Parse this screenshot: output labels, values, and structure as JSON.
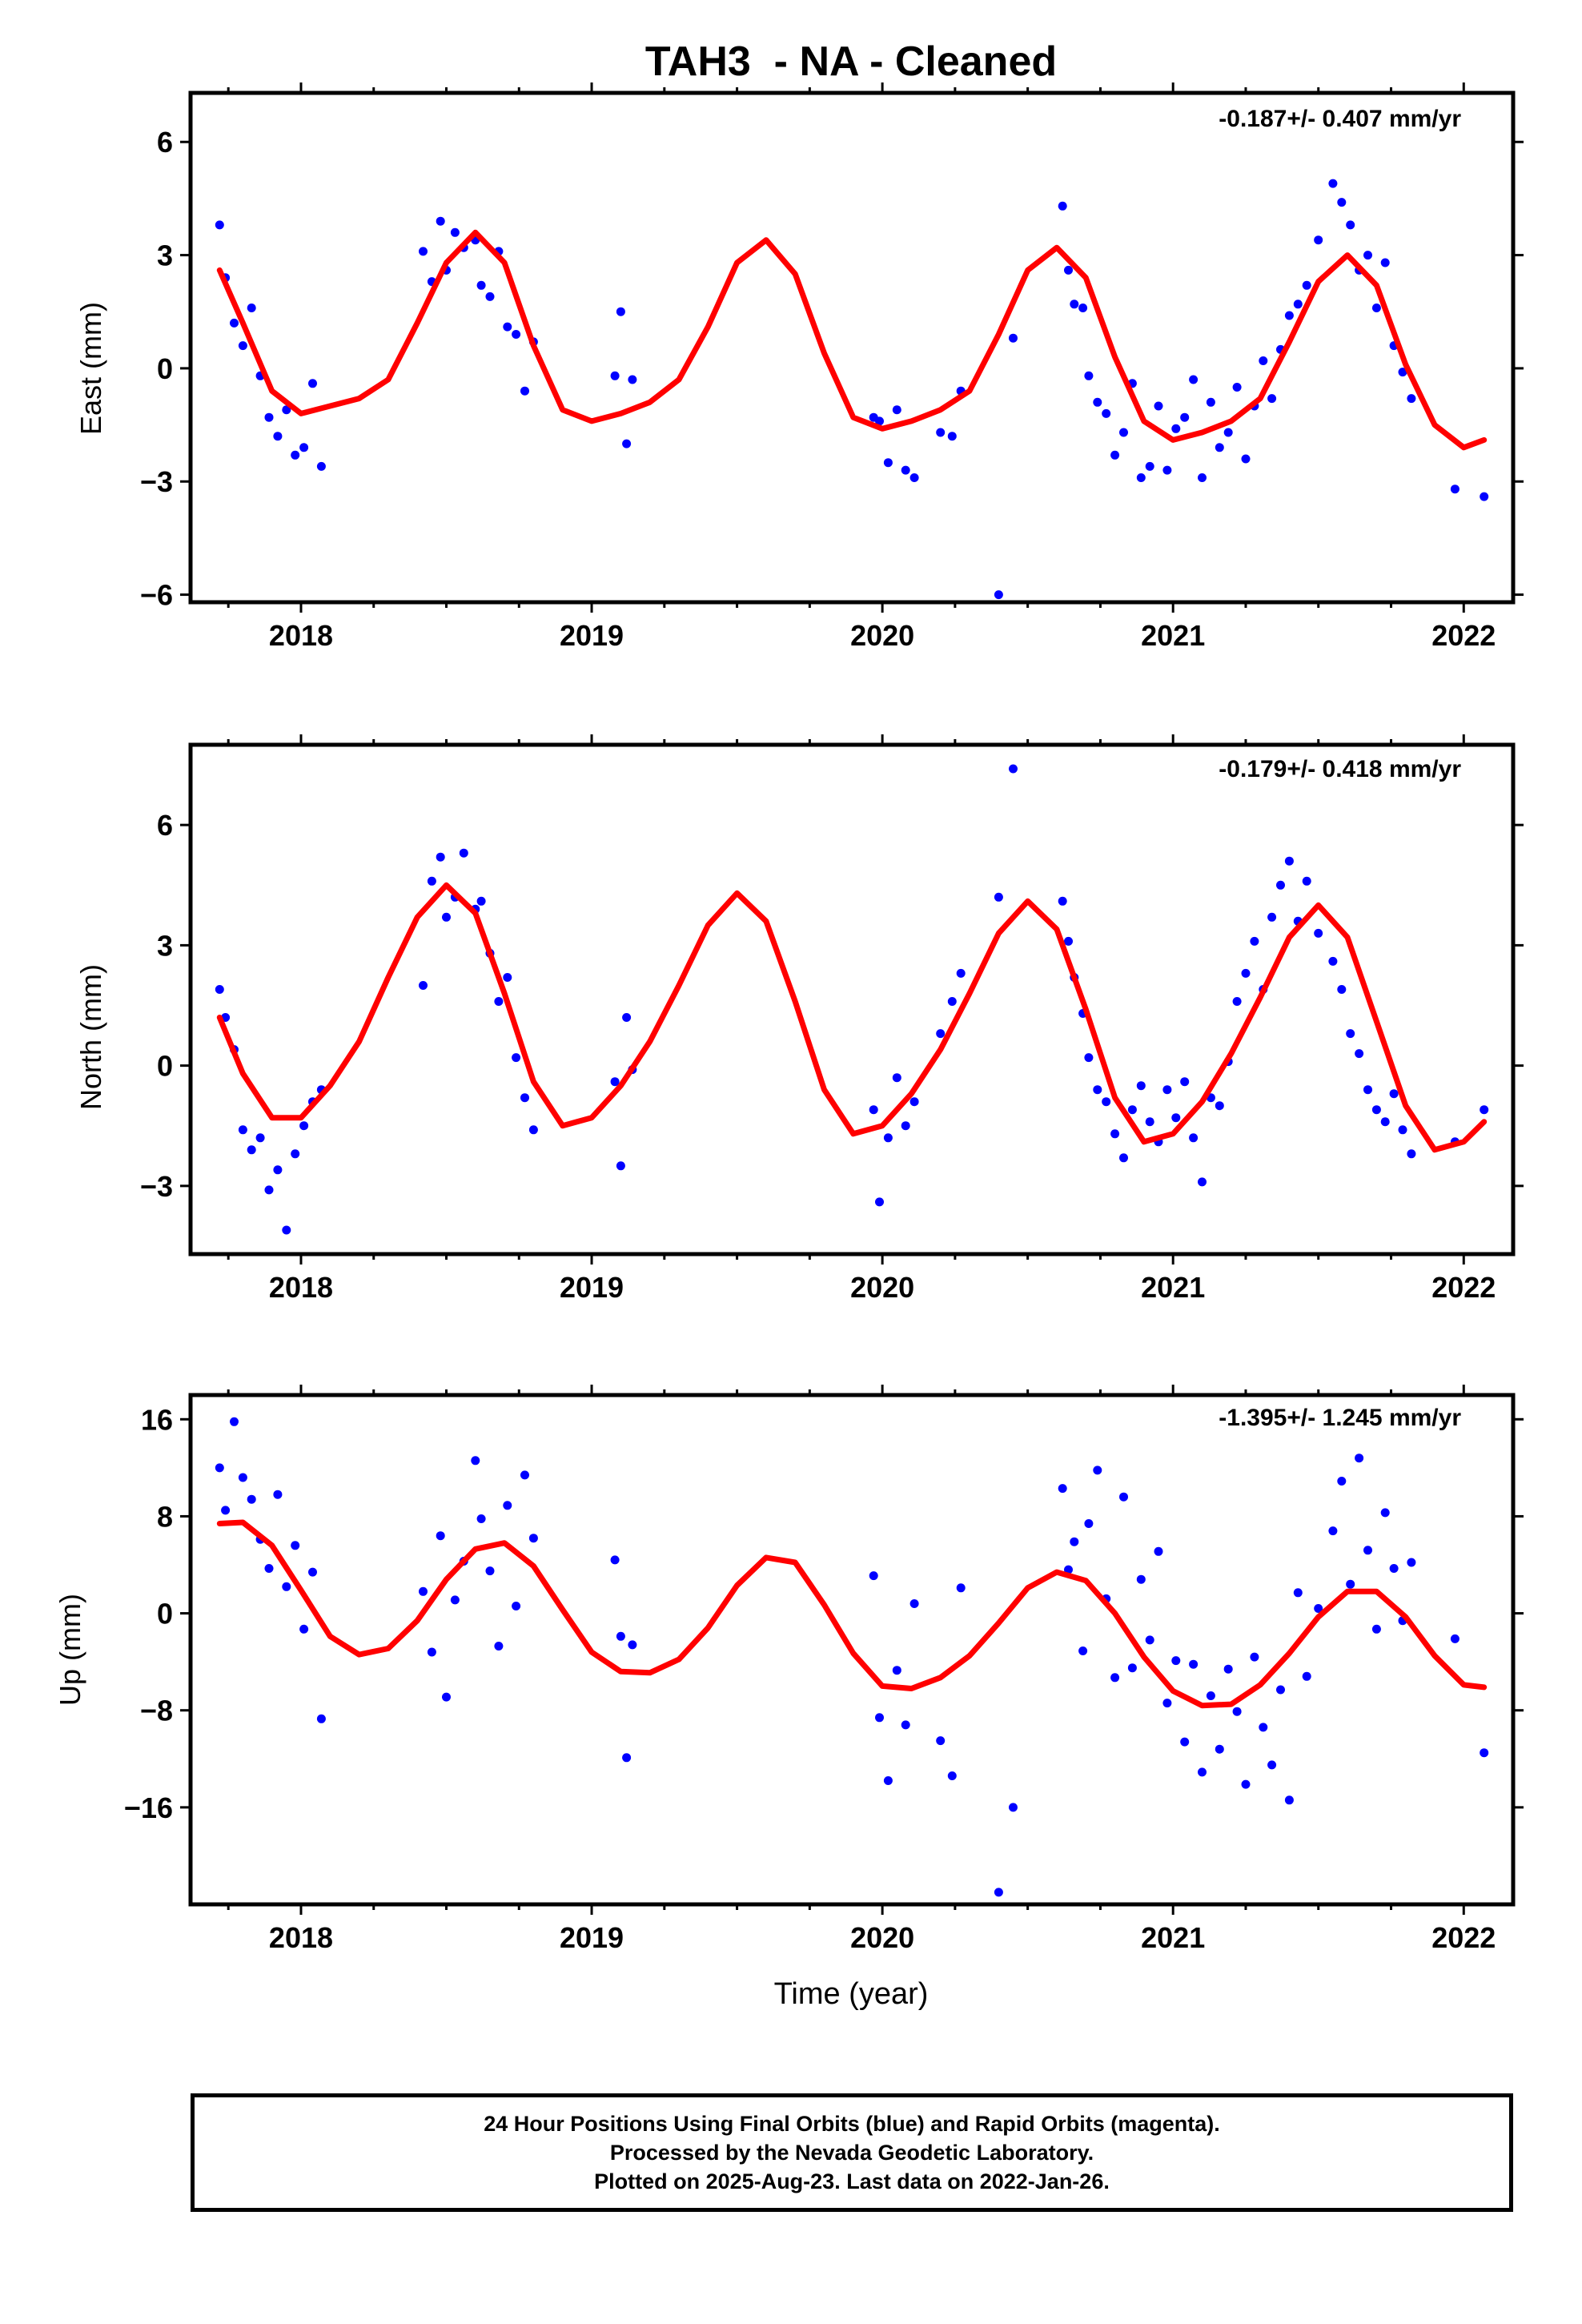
{
  "title": "TAH3  - NA - Cleaned",
  "xlabel": "Time (year)",
  "footer": {
    "line1": "24 Hour Positions Using Final Orbits (blue) and Rapid Orbits (magenta).",
    "line2": "Processed by the Nevada Geodetic Laboratory.",
    "line3": "Plotted on 2025-Aug-23. Last data on 2022-Jan-26."
  },
  "colors": {
    "data_points": "#0000ff",
    "model_curve": "#ff0000",
    "frame": "#000000"
  },
  "chart_data": [
    {
      "type": "scatter",
      "component": "east",
      "ylabel": "East (mm)",
      "rate_label": "-0.187+/- 0.407 mm/yr",
      "xlim": [
        2017.62,
        2022.17
      ],
      "ylim": [
        -6.2,
        7.3
      ],
      "xticks": [
        2018,
        2019,
        2020,
        2021,
        2022
      ],
      "yticks": [
        -6,
        -3,
        0,
        3,
        6
      ],
      "ytick_labels": [
        "−6",
        "−3",
        "0",
        "3",
        "6"
      ],
      "series": [
        {
          "style": "points",
          "x": [
            2017.72,
            2017.74,
            2017.77,
            2017.8,
            2017.83,
            2017.86,
            2017.89,
            2017.92,
            2017.95,
            2017.98,
            2018.01,
            2018.04,
            2018.07,
            2018.42,
            2018.45,
            2018.48,
            2018.5,
            2018.53,
            2018.56,
            2018.6,
            2018.62,
            2018.65,
            2018.68,
            2018.71,
            2018.74,
            2018.77,
            2018.8,
            2019.08,
            2019.1,
            2019.12,
            2019.14,
            2019.97,
            2019.99,
            2020.02,
            2020.05,
            2020.08,
            2020.11,
            2020.2,
            2020.24,
            2020.27,
            2020.4,
            2020.45,
            2020.62,
            2020.64,
            2020.66,
            2020.69,
            2020.71,
            2020.74,
            2020.77,
            2020.8,
            2020.83,
            2020.86,
            2020.89,
            2020.92,
            2020.95,
            2020.98,
            2021.01,
            2021.04,
            2021.07,
            2021.1,
            2021.13,
            2021.16,
            2021.19,
            2021.22,
            2021.25,
            2021.28,
            2021.31,
            2021.34,
            2021.37,
            2021.4,
            2021.43,
            2021.46,
            2021.5,
            2021.55,
            2021.58,
            2021.61,
            2021.64,
            2021.67,
            2021.7,
            2021.73,
            2021.76,
            2021.79,
            2021.82,
            2021.97,
            2022.07
          ],
          "y": [
            3.8,
            2.4,
            1.2,
            0.6,
            1.6,
            -0.2,
            -1.3,
            -1.8,
            -1.1,
            -2.3,
            -2.1,
            -0.4,
            -2.6,
            3.1,
            2.3,
            3.9,
            2.6,
            3.6,
            3.2,
            3.4,
            2.2,
            1.9,
            3.1,
            1.1,
            0.9,
            -0.6,
            0.7,
            -0.2,
            1.5,
            -2.0,
            -0.3,
            -1.3,
            -1.4,
            -2.5,
            -1.1,
            -2.7,
            -2.9,
            -1.7,
            -1.8,
            -0.6,
            -6.0,
            0.8,
            4.3,
            2.6,
            1.7,
            1.6,
            -0.2,
            -0.9,
            -1.2,
            -2.3,
            -1.7,
            -0.4,
            -2.9,
            -2.6,
            -1.0,
            -2.7,
            -1.6,
            -1.3,
            -0.3,
            -2.9,
            -0.9,
            -2.1,
            -1.7,
            -0.5,
            -2.4,
            -1.0,
            0.2,
            -0.8,
            0.5,
            1.4,
            1.7,
            2.2,
            3.4,
            4.9,
            4.4,
            3.8,
            2.6,
            3.0,
            1.6,
            2.8,
            0.6,
            -0.1,
            -0.8,
            -3.2,
            -3.4
          ]
        },
        {
          "style": "curve",
          "x": [
            2017.72,
            2017.8,
            2017.9,
            2018.0,
            2018.1,
            2018.2,
            2018.3,
            2018.4,
            2018.5,
            2018.6,
            2018.7,
            2018.8,
            2018.9,
            2019.0,
            2019.1,
            2019.2,
            2019.3,
            2019.4,
            2019.5,
            2019.6,
            2019.7,
            2019.8,
            2019.9,
            2020.0,
            2020.1,
            2020.2,
            2020.3,
            2020.4,
            2020.5,
            2020.6,
            2020.7,
            2020.8,
            2020.9,
            2021.0,
            2021.1,
            2021.2,
            2021.3,
            2021.4,
            2021.5,
            2021.6,
            2021.7,
            2021.8,
            2021.9,
            2022.0,
            2022.07
          ],
          "y": [
            2.6,
            1.2,
            -0.6,
            -1.2,
            -1.0,
            -0.8,
            -0.3,
            1.2,
            2.8,
            3.6,
            2.8,
            0.6,
            -1.1,
            -1.4,
            -1.2,
            -0.9,
            -0.3,
            1.1,
            2.8,
            3.4,
            2.5,
            0.4,
            -1.3,
            -1.6,
            -1.4,
            -1.1,
            -0.6,
            0.9,
            2.6,
            3.2,
            2.4,
            0.3,
            -1.4,
            -1.9,
            -1.7,
            -1.4,
            -0.8,
            0.7,
            2.3,
            3.0,
            2.2,
            0.1,
            -1.5,
            -2.1,
            -1.9
          ]
        }
      ]
    },
    {
      "type": "scatter",
      "component": "north",
      "ylabel": "North (mm)",
      "rate_label": "-0.179+/- 0.418 mm/yr",
      "xlim": [
        2017.62,
        2022.17
      ],
      "ylim": [
        -4.7,
        8.0
      ],
      "xticks": [
        2018,
        2019,
        2020,
        2021,
        2022
      ],
      "yticks": [
        -3,
        0,
        3,
        6
      ],
      "ytick_labels": [
        "−3",
        "0",
        "3",
        "6"
      ],
      "series": [
        {
          "style": "points",
          "x": [
            2017.72,
            2017.74,
            2017.77,
            2017.8,
            2017.83,
            2017.86,
            2017.89,
            2017.92,
            2017.95,
            2017.98,
            2018.01,
            2018.04,
            2018.07,
            2018.42,
            2018.45,
            2018.48,
            2018.5,
            2018.53,
            2018.56,
            2018.6,
            2018.62,
            2018.65,
            2018.68,
            2018.71,
            2018.74,
            2018.77,
            2018.8,
            2019.08,
            2019.1,
            2019.12,
            2019.14,
            2019.97,
            2019.99,
            2020.02,
            2020.05,
            2020.08,
            2020.11,
            2020.2,
            2020.24,
            2020.27,
            2020.4,
            2020.45,
            2020.62,
            2020.64,
            2020.66,
            2020.69,
            2020.71,
            2020.74,
            2020.77,
            2020.8,
            2020.83,
            2020.86,
            2020.89,
            2020.92,
            2020.95,
            2020.98,
            2021.01,
            2021.04,
            2021.07,
            2021.1,
            2021.13,
            2021.16,
            2021.19,
            2021.22,
            2021.25,
            2021.28,
            2021.31,
            2021.34,
            2021.37,
            2021.4,
            2021.43,
            2021.46,
            2021.5,
            2021.55,
            2021.58,
            2021.61,
            2021.64,
            2021.67,
            2021.7,
            2021.73,
            2021.76,
            2021.79,
            2021.82,
            2021.97,
            2022.07
          ],
          "y": [
            1.9,
            1.2,
            0.4,
            -1.6,
            -2.1,
            -1.8,
            -3.1,
            -2.6,
            -4.1,
            -2.2,
            -1.5,
            -0.9,
            -0.6,
            2.0,
            4.6,
            5.2,
            3.7,
            4.2,
            5.3,
            3.9,
            4.1,
            2.8,
            1.6,
            2.2,
            0.2,
            -0.8,
            -1.6,
            -0.4,
            -2.5,
            1.2,
            -0.1,
            -1.1,
            -3.4,
            -1.8,
            -0.3,
            -1.5,
            -0.9,
            0.8,
            1.6,
            2.3,
            4.2,
            7.4,
            4.1,
            3.1,
            2.2,
            1.3,
            0.2,
            -0.6,
            -0.9,
            -1.7,
            -2.3,
            -1.1,
            -0.5,
            -1.4,
            -1.9,
            -0.6,
            -1.3,
            -0.4,
            -1.8,
            -2.9,
            -0.8,
            -1.0,
            0.1,
            1.6,
            2.3,
            3.1,
            1.9,
            3.7,
            4.5,
            5.1,
            3.6,
            4.6,
            3.3,
            2.6,
            1.9,
            0.8,
            0.3,
            -0.6,
            -1.1,
            -1.4,
            -0.7,
            -1.6,
            -2.2,
            -1.9,
            -1.1
          ]
        },
        {
          "style": "curve",
          "x": [
            2017.72,
            2017.8,
            2017.9,
            2018.0,
            2018.1,
            2018.2,
            2018.3,
            2018.4,
            2018.5,
            2018.6,
            2018.7,
            2018.8,
            2018.9,
            2019.0,
            2019.1,
            2019.2,
            2019.3,
            2019.4,
            2019.5,
            2019.6,
            2019.7,
            2019.8,
            2019.9,
            2020.0,
            2020.1,
            2020.2,
            2020.3,
            2020.4,
            2020.5,
            2020.6,
            2020.7,
            2020.8,
            2020.9,
            2021.0,
            2021.1,
            2021.2,
            2021.3,
            2021.4,
            2021.5,
            2021.6,
            2021.7,
            2021.8,
            2021.9,
            2022.0,
            2022.07
          ],
          "y": [
            1.2,
            -0.2,
            -1.3,
            -1.3,
            -0.5,
            0.6,
            2.2,
            3.7,
            4.5,
            3.8,
            1.8,
            -0.4,
            -1.5,
            -1.3,
            -0.5,
            0.6,
            2.0,
            3.5,
            4.3,
            3.6,
            1.6,
            -0.6,
            -1.7,
            -1.5,
            -0.7,
            0.4,
            1.8,
            3.3,
            4.1,
            3.4,
            1.4,
            -0.8,
            -1.9,
            -1.7,
            -0.9,
            0.3,
            1.7,
            3.2,
            4.0,
            3.2,
            1.1,
            -1.0,
            -2.1,
            -1.9,
            -1.4
          ]
        }
      ]
    },
    {
      "type": "scatter",
      "component": "up",
      "ylabel": "Up (mm)",
      "rate_label": "-1.395+/- 1.245 mm/yr",
      "xlim": [
        2017.62,
        2022.17
      ],
      "ylim": [
        -24,
        18
      ],
      "xticks": [
        2018,
        2019,
        2020,
        2021,
        2022
      ],
      "yticks": [
        -16,
        -8,
        0,
        8,
        16
      ],
      "ytick_labels": [
        "−16",
        "−8",
        "0",
        "8",
        "16"
      ],
      "series": [
        {
          "style": "points",
          "x": [
            2017.72,
            2017.74,
            2017.77,
            2017.8,
            2017.83,
            2017.86,
            2017.89,
            2017.92,
            2017.95,
            2017.98,
            2018.01,
            2018.04,
            2018.07,
            2018.42,
            2018.45,
            2018.48,
            2018.5,
            2018.53,
            2018.56,
            2018.6,
            2018.62,
            2018.65,
            2018.68,
            2018.71,
            2018.74,
            2018.77,
            2018.8,
            2019.08,
            2019.1,
            2019.12,
            2019.14,
            2019.97,
            2019.99,
            2020.02,
            2020.05,
            2020.08,
            2020.11,
            2020.2,
            2020.24,
            2020.27,
            2020.4,
            2020.45,
            2020.62,
            2020.64,
            2020.66,
            2020.69,
            2020.71,
            2020.74,
            2020.77,
            2020.8,
            2020.83,
            2020.86,
            2020.89,
            2020.92,
            2020.95,
            2020.98,
            2021.01,
            2021.04,
            2021.07,
            2021.1,
            2021.13,
            2021.16,
            2021.19,
            2021.22,
            2021.25,
            2021.28,
            2021.31,
            2021.34,
            2021.37,
            2021.4,
            2021.43,
            2021.46,
            2021.5,
            2021.55,
            2021.58,
            2021.61,
            2021.64,
            2021.67,
            2021.7,
            2021.73,
            2021.76,
            2021.79,
            2021.82,
            2021.97,
            2022.07
          ],
          "y": [
            12.0,
            8.5,
            15.8,
            11.2,
            9.4,
            6.1,
            3.7,
            9.8,
            2.2,
            5.6,
            -1.3,
            3.4,
            -8.7,
            1.8,
            -3.2,
            6.4,
            -6.9,
            1.1,
            4.3,
            12.6,
            7.8,
            3.5,
            -2.7,
            8.9,
            0.6,
            11.4,
            6.2,
            4.4,
            -1.9,
            -11.9,
            -2.6,
            3.1,
            -8.6,
            -13.8,
            -4.7,
            -9.2,
            0.8,
            -10.5,
            -13.4,
            2.1,
            -23.0,
            -16.0,
            10.3,
            3.6,
            5.9,
            -3.1,
            7.4,
            11.8,
            1.2,
            -5.3,
            9.6,
            -4.5,
            2.8,
            -2.2,
            5.1,
            -7.4,
            -3.9,
            -10.6,
            -4.2,
            -13.1,
            -6.8,
            -11.2,
            -4.6,
            -8.1,
            -14.1,
            -3.6,
            -9.4,
            -12.5,
            -6.3,
            -15.4,
            1.7,
            -5.2,
            0.4,
            6.8,
            10.9,
            2.4,
            12.8,
            5.2,
            -1.3,
            8.3,
            3.7,
            -0.6,
            4.2,
            -2.1,
            -11.5
          ]
        },
        {
          "style": "curve",
          "x": [
            2017.72,
            2017.8,
            2017.9,
            2018.0,
            2018.1,
            2018.2,
            2018.3,
            2018.4,
            2018.5,
            2018.6,
            2018.7,
            2018.8,
            2018.9,
            2019.0,
            2019.1,
            2019.2,
            2019.3,
            2019.4,
            2019.5,
            2019.6,
            2019.7,
            2019.8,
            2019.9,
            2020.0,
            2020.1,
            2020.2,
            2020.3,
            2020.4,
            2020.5,
            2020.6,
            2020.7,
            2020.8,
            2020.9,
            2021.0,
            2021.1,
            2021.2,
            2021.3,
            2021.4,
            2021.5,
            2021.6,
            2021.7,
            2021.8,
            2021.9,
            2022.0,
            2022.07
          ],
          "y": [
            7.4,
            7.5,
            5.6,
            1.9,
            -1.9,
            -3.4,
            -2.9,
            -0.6,
            2.8,
            5.3,
            5.8,
            3.9,
            0.3,
            -3.2,
            -4.8,
            -4.9,
            -3.8,
            -1.2,
            2.3,
            4.6,
            4.2,
            0.7,
            -3.3,
            -6.0,
            -6.2,
            -5.3,
            -3.5,
            -0.8,
            2.1,
            3.4,
            2.7,
            0.0,
            -3.6,
            -6.4,
            -7.6,
            -7.5,
            -5.9,
            -3.3,
            -0.3,
            1.8,
            1.8,
            -0.3,
            -3.5,
            -5.9,
            -6.1
          ]
        }
      ]
    }
  ]
}
